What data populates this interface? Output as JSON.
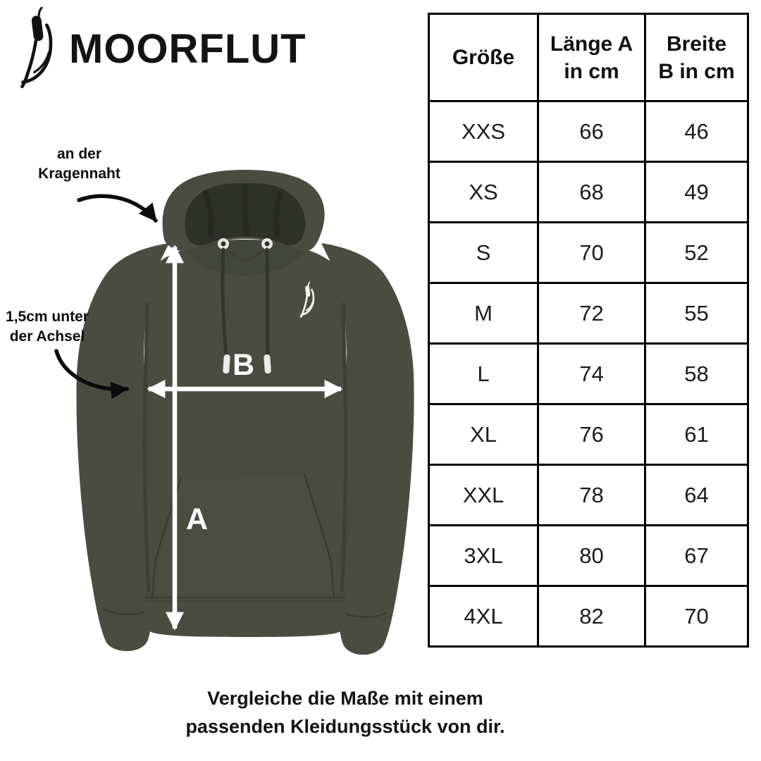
{
  "brand": {
    "name": "MOORFLUT",
    "icon": "cattail-icon"
  },
  "hoodie": {
    "measure_labels": {
      "a": "A",
      "b": "B"
    },
    "annotations": {
      "collar": {
        "line1": "an der",
        "line2": "Kragennaht"
      },
      "armpit": {
        "line1": "1,5cm unter",
        "line2": "der Achsel"
      }
    },
    "colors": {
      "body": "#4a4c42",
      "hood_inner": "#2e3129",
      "seam": "#3a3d33",
      "measure_arrow": "#ffffff",
      "annotation_arrow": "#0b0b0b"
    },
    "chest_logo": "cattail-icon"
  },
  "size_table": {
    "headers": [
      {
        "line1": "Größe",
        "line2": ""
      },
      {
        "line1": "Länge A",
        "line2": "in cm"
      },
      {
        "line1": "Breite",
        "line2": "B in cm"
      }
    ],
    "rows": [
      {
        "size": "XXS",
        "laenge": "66",
        "breite": "46"
      },
      {
        "size": "XS",
        "laenge": "68",
        "breite": "49"
      },
      {
        "size": "S",
        "laenge": "70",
        "breite": "52"
      },
      {
        "size": "M",
        "laenge": "72",
        "breite": "55"
      },
      {
        "size": "L",
        "laenge": "74",
        "breite": "58"
      },
      {
        "size": "XL",
        "laenge": "76",
        "breite": "61"
      },
      {
        "size": "XXL",
        "laenge": "78",
        "breite": "64"
      },
      {
        "size": "3XL",
        "laenge": "80",
        "breite": "67"
      },
      {
        "size": "4XL",
        "laenge": "82",
        "breite": "70"
      }
    ]
  },
  "caption": {
    "line1": "Vergleiche die Maße mit einem",
    "line2": "passenden Kleidungsstück von dir."
  },
  "chart_data": {
    "type": "table",
    "columns": [
      "Größe",
      "Länge A in cm",
      "Breite B in cm"
    ],
    "rows": [
      [
        "XXS",
        66,
        46
      ],
      [
        "XS",
        68,
        49
      ],
      [
        "S",
        70,
        52
      ],
      [
        "M",
        72,
        55
      ],
      [
        "L",
        74,
        58
      ],
      [
        "XL",
        76,
        61
      ],
      [
        "XXL",
        78,
        64
      ],
      [
        "3XL",
        80,
        67
      ],
      [
        "4XL",
        82,
        70
      ]
    ]
  }
}
